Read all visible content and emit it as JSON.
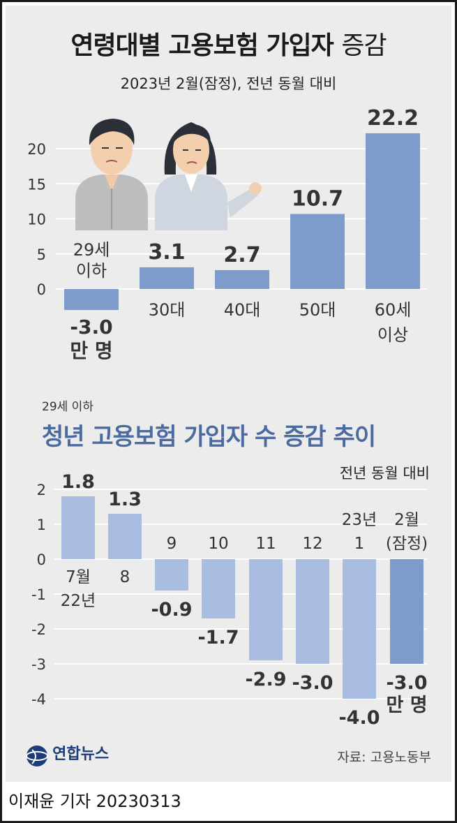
{
  "header": {
    "title_main": "연령대별 고용보험 가입자",
    "title_suffix": "증감",
    "subtitle": "2023년 2월(잠정), 전년 동월 대비"
  },
  "chart_data": [
    {
      "type": "bar",
      "categories": [
        "29세\n이하",
        "30대",
        "40대",
        "50대",
        "60세\n이상"
      ],
      "values": [
        -3.0,
        3.1,
        2.7,
        10.7,
        22.2
      ],
      "value_labels": [
        "-3.0\n만 명",
        "3.1",
        "2.7",
        "10.7",
        "22.2"
      ],
      "yticks": [
        0,
        5,
        10,
        15,
        20
      ],
      "ylim": [
        -3.5,
        23
      ],
      "grid": true,
      "colors": {
        "bar": "#7d9ccb",
        "grid": "#ffffff"
      }
    },
    {
      "type": "bar",
      "title": "청년 고용보험 가입자 수 증감 추이",
      "supertitle": "29세 이하",
      "basis": "전년 동월 대비",
      "categories": [
        "7월\n22년",
        "8",
        "9",
        "10",
        "11",
        "12",
        "23년\n1",
        "2월\n(잠정)"
      ],
      "values": [
        1.8,
        1.3,
        -0.9,
        -1.7,
        -2.9,
        -3.0,
        -4.0,
        -3.0
      ],
      "value_labels": [
        "1.8",
        "1.3",
        "-0.9",
        "-1.7",
        "-2.9",
        "-3.0",
        "-4.0",
        "-3.0\n만 명"
      ],
      "yticks": [
        2,
        1,
        0,
        -1,
        -2,
        -3,
        -4
      ],
      "ylim": [
        -4.2,
        2.2
      ],
      "grid": true,
      "colors": {
        "bar": "#a9bde0",
        "highlight": "#7d9ccb",
        "grid": "#ffffff"
      }
    }
  ],
  "illustration": {
    "icons": [
      "young-man-icon",
      "young-woman-icon"
    ]
  },
  "footer": {
    "source": "자료: 고용노동부",
    "logo_text": "연합뉴스",
    "credit": "이재윤 기자  20230313"
  }
}
